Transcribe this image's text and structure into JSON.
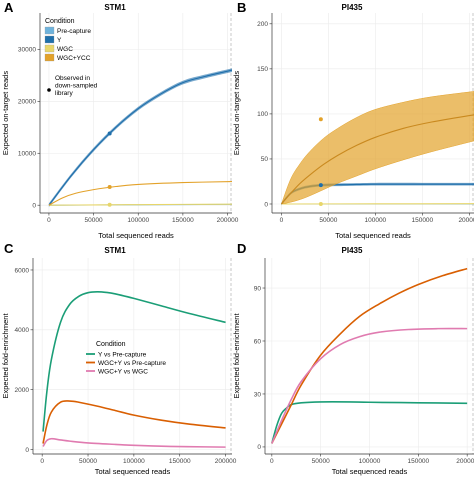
{
  "colors": {
    "precapture": "#6fb3dc",
    "y": "#1f6fab",
    "wgc": "#e8d66a",
    "wgcycc": "#e3a22a",
    "y_vs_pre": "#1b9e77",
    "wgcy_vs_pre": "#d95f02",
    "wgcy_vs_wgc": "#e07bb0",
    "grid": "#ebebeb",
    "border": "#333333"
  },
  "legend_top": {
    "title": "Condition",
    "items": [
      {
        "label": "Pre-capture",
        "color_key": "precapture"
      },
      {
        "label": "Y",
        "color_key": "y"
      },
      {
        "label": "WGC",
        "color_key": "wgc"
      },
      {
        "label": "WGC+YCC",
        "color_key": "wgcycc"
      }
    ],
    "observed_label_lines": [
      "Observed in",
      "down-sampled",
      "library"
    ]
  },
  "legend_bottom": {
    "title": "Condition",
    "items": [
      {
        "label": "Y vs Pre-capture",
        "color_key": "y_vs_pre"
      },
      {
        "label": "WGC+Y vs Pre-capture",
        "color_key": "wgcy_vs_pre"
      },
      {
        "label": "WGC+Y vs WGC",
        "color_key": "wgcy_vs_wgc"
      }
    ]
  },
  "chart_data": [
    {
      "panel": "A",
      "type": "line",
      "title": "STM1",
      "xlabel": "Total sequenced reads",
      "ylabel": "Expected on-target reads",
      "xlim": [
        -10000,
        205000
      ],
      "ylim": [
        -1500,
        37000
      ],
      "xticks": [
        0,
        50000,
        100000,
        150000,
        200000
      ],
      "xtick_labels": [
        "0",
        "50000",
        "100000",
        "150000",
        "200000"
      ],
      "yticks": [
        0,
        10000,
        20000,
        30000
      ],
      "ytick_labels": [
        "0",
        "10000",
        "20000",
        "30000"
      ],
      "grid": true,
      "legend_position": "top-left",
      "series": [
        {
          "name": "Pre-capture",
          "color_key": "precapture",
          "x": [
            0,
            50000,
            100000,
            150000,
            205000
          ],
          "y": [
            0,
            40,
            80,
            120,
            160
          ]
        },
        {
          "name": "Y",
          "color_key": "y",
          "x": [
            0,
            25000,
            50000,
            75000,
            100000,
            125000,
            150000,
            175000,
            205000
          ],
          "y": [
            0,
            5700,
            10700,
            15000,
            18600,
            21400,
            23600,
            24800,
            26000
          ],
          "ribbon_halfwidth": 350
        },
        {
          "name": "WGC",
          "color_key": "wgc",
          "x": [
            0,
            50000,
            100000,
            150000,
            205000
          ],
          "y": [
            0,
            60,
            110,
            160,
            200
          ]
        },
        {
          "name": "WGC+YCC",
          "color_key": "wgcycc",
          "x": [
            0,
            15000,
            30000,
            50000,
            75000,
            100000,
            150000,
            205000
          ],
          "y": [
            0,
            1400,
            2300,
            3000,
            3600,
            4000,
            4350,
            4550
          ]
        }
      ],
      "observed_points": [
        {
          "series": "Y",
          "color_key": "y",
          "x": 68000,
          "y": 13800
        },
        {
          "series": "WGC+YCC",
          "color_key": "wgcycc",
          "x": 68000,
          "y": 3500
        },
        {
          "series": "WGC",
          "color_key": "wgc",
          "x": 68000,
          "y": 100
        }
      ]
    },
    {
      "panel": "B",
      "type": "line",
      "title": "PI435",
      "xlabel": "Total sequenced reads",
      "ylabel": "Expected on-target reads",
      "xlim": [
        -10000,
        205000
      ],
      "ylim": [
        -10,
        212
      ],
      "xticks": [
        0,
        50000,
        100000,
        150000,
        200000
      ],
      "xtick_labels": [
        "0",
        "50000",
        "100000",
        "150000",
        "200000"
      ],
      "yticks": [
        0,
        50,
        100,
        150,
        200
      ],
      "ytick_labels": [
        "0",
        "50",
        "100",
        "150",
        "200"
      ],
      "grid": true,
      "series": [
        {
          "name": "Pre-capture",
          "color_key": "precapture",
          "x": [
            0,
            100000,
            205000
          ],
          "y": [
            0,
            0,
            0
          ]
        },
        {
          "name": "Y",
          "color_key": "y",
          "x": [
            0,
            10000,
            20000,
            30000,
            45000,
            70000,
            100000,
            150000,
            205000
          ],
          "y": [
            0,
            12,
            17,
            19.5,
            21,
            21.5,
            22,
            22,
            22
          ],
          "ribbon_halfwidth": 1.5
        },
        {
          "name": "WGC",
          "color_key": "wgc",
          "x": [
            0,
            100000,
            205000
          ],
          "y": [
            0,
            0.2,
            0.3
          ]
        },
        {
          "name": "WGC+YCC",
          "color_key": "wgcycc",
          "x": [
            0,
            10000,
            20000,
            30000,
            45000,
            60000,
            80000,
            100000,
            130000,
            160000,
            205000
          ],
          "y": [
            0,
            12,
            23,
            32,
            44,
            54,
            65,
            74,
            84,
            91,
            99
          ],
          "y_low": [
            0,
            2,
            5,
            9,
            16,
            23,
            31,
            39,
            49,
            58,
            70
          ],
          "y_high": [
            0,
            28,
            45,
            58,
            73,
            84,
            96,
            105,
            113,
            119,
            125
          ]
        }
      ],
      "observed_points": [
        {
          "series": "WGC+YCC",
          "color_key": "wgcycc",
          "x": 42000,
          "y": 94
        },
        {
          "series": "Y",
          "color_key": "y",
          "x": 42000,
          "y": 21
        },
        {
          "series": "WGC",
          "color_key": "wgc",
          "x": 42000,
          "y": 0
        }
      ]
    },
    {
      "panel": "C",
      "type": "line",
      "title": "STM1",
      "xlabel": "Total sequenced reads",
      "ylabel": "Expected fold-enrichment",
      "xlim": [
        -10000,
        207000
      ],
      "ylim": [
        -150,
        6400
      ],
      "xticks": [
        0,
        50000,
        100000,
        150000,
        200000
      ],
      "xtick_labels": [
        "0",
        "50000",
        "100000",
        "150000",
        "200000"
      ],
      "yticks": [
        0,
        2000,
        4000,
        6000
      ],
      "ytick_labels": [
        "0",
        "2000",
        "4000",
        "6000"
      ],
      "grid": true,
      "legend_position": "center-right",
      "series": [
        {
          "name": "Y vs Pre-capture",
          "color_key": "y_vs_pre",
          "x": [
            1000,
            5000,
            10000,
            20000,
            30000,
            40000,
            50000,
            60000,
            70000,
            80000,
            100000,
            130000,
            160000,
            200000
          ],
          "y": [
            600,
            1900,
            3000,
            4250,
            4850,
            5120,
            5240,
            5270,
            5250,
            5200,
            5050,
            4800,
            4550,
            4250
          ]
        },
        {
          "name": "WGC+Y vs Pre-capture",
          "color_key": "wgcy_vs_pre",
          "x": [
            1000,
            5000,
            10000,
            20000,
            30000,
            40000,
            60000,
            80000,
            100000,
            130000,
            160000,
            200000
          ],
          "y": [
            200,
            800,
            1250,
            1580,
            1620,
            1580,
            1450,
            1300,
            1150,
            980,
            850,
            720
          ]
        },
        {
          "name": "WGC+Y vs WGC",
          "color_key": "wgcy_vs_wgc",
          "x": [
            1000,
            5000,
            10000,
            20000,
            30000,
            50000,
            80000,
            100000,
            130000,
            160000,
            200000
          ],
          "y": [
            100,
            300,
            360,
            320,
            280,
            220,
            170,
            140,
            110,
            95,
            80
          ]
        }
      ]
    },
    {
      "panel": "D",
      "type": "line",
      "title": "PI435",
      "xlabel": "Total sequenced reads",
      "ylabel": "Expected fold-enrichment",
      "xlim": [
        -7000,
        207000
      ],
      "ylim": [
        -4,
        107
      ],
      "xticks": [
        0,
        50000,
        100000,
        150000,
        200000
      ],
      "xtick_labels": [
        "0",
        "50000",
        "100000",
        "150000",
        "200000"
      ],
      "yticks": [
        0,
        30,
        60,
        90
      ],
      "ytick_labels": [
        "0",
        "30",
        "60",
        "90"
      ],
      "grid": true,
      "series": [
        {
          "name": "Y vs Pre-capture",
          "color_key": "y_vs_pre",
          "x": [
            0,
            5000,
            10000,
            15000,
            20000,
            30000,
            50000,
            80000,
            100000,
            150000,
            200000
          ],
          "y": [
            2,
            12,
            19,
            22,
            24,
            25,
            25.5,
            25.5,
            25.3,
            25,
            24.7
          ]
        },
        {
          "name": "WGC+Y vs Pre-capture",
          "color_key": "wgcy_vs_pre",
          "x": [
            0,
            10000,
            20000,
            30000,
            50000,
            70000,
            90000,
            110000,
            130000,
            150000,
            175000,
            200000
          ],
          "y": [
            2,
            13,
            24,
            35,
            52,
            64,
            74,
            81,
            87,
            92,
            97,
            101
          ]
        },
        {
          "name": "WGC+Y vs WGC",
          "color_key": "wgcy_vs_wgc",
          "x": [
            0,
            10000,
            20000,
            30000,
            50000,
            70000,
            90000,
            110000,
            140000,
            170000,
            200000
          ],
          "y": [
            2,
            15,
            27,
            37,
            50,
            58,
            62.5,
            65,
            66.5,
            67,
            67
          ]
        }
      ]
    }
  ]
}
